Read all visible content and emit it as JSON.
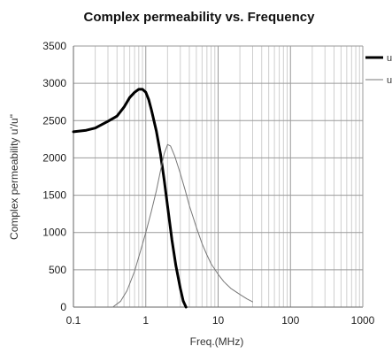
{
  "chart_data": {
    "type": "line",
    "title": "Complex permeability vs. Frequency",
    "xlabel": "Freq.(MHz)",
    "ylabel": "Complex permeability u'/u\"",
    "x_scale": "log",
    "xlim": [
      0.1,
      1000
    ],
    "ylim": [
      0,
      3500
    ],
    "x_ticks": [
      0.1,
      1,
      10,
      100,
      1000
    ],
    "x_tick_labels": [
      "0.1",
      "1",
      "10",
      "100",
      "1000"
    ],
    "y_ticks": [
      0,
      500,
      1000,
      1500,
      2000,
      2500,
      3000,
      3500
    ],
    "y_tick_labels": [
      "0",
      "500",
      "1000",
      "1500",
      "2000",
      "2500",
      "3000",
      "3500"
    ],
    "grid": true,
    "legend_position": "right, clipped at image edge",
    "series": [
      {
        "name": "u'",
        "color": "#000000",
        "style": "thick",
        "x": [
          0.1,
          0.15,
          0.2,
          0.3,
          0.4,
          0.5,
          0.6,
          0.7,
          0.8,
          0.9,
          1.0,
          1.1,
          1.2,
          1.4,
          1.6,
          1.8,
          2.0,
          2.3,
          2.6,
          3.0,
          3.3,
          3.6
        ],
        "y": [
          2350,
          2370,
          2400,
          2490,
          2560,
          2680,
          2810,
          2880,
          2920,
          2920,
          2880,
          2780,
          2640,
          2360,
          2050,
          1700,
          1350,
          900,
          560,
          250,
          80,
          0
        ]
      },
      {
        "name": "u\"",
        "color": "#777777",
        "style": "thin",
        "x": [
          0.35,
          0.45,
          0.55,
          0.7,
          0.85,
          1.0,
          1.2,
          1.4,
          1.6,
          1.8,
          2.0,
          2.2,
          2.5,
          3.0,
          3.5,
          4.0,
          5.0,
          6.0,
          7.0,
          8.0,
          10,
          12,
          15,
          20,
          25,
          30
        ],
        "y": [
          0,
          80,
          220,
          480,
          760,
          1000,
          1290,
          1560,
          1830,
          2060,
          2180,
          2160,
          2030,
          1790,
          1570,
          1360,
          1070,
          850,
          700,
          580,
          440,
          340,
          250,
          170,
          110,
          70
        ]
      }
    ],
    "legend": [
      {
        "label": "u",
        "color": "#000000",
        "style": "thick"
      },
      {
        "label": "u",
        "color": "#777777",
        "style": "thin"
      }
    ]
  }
}
